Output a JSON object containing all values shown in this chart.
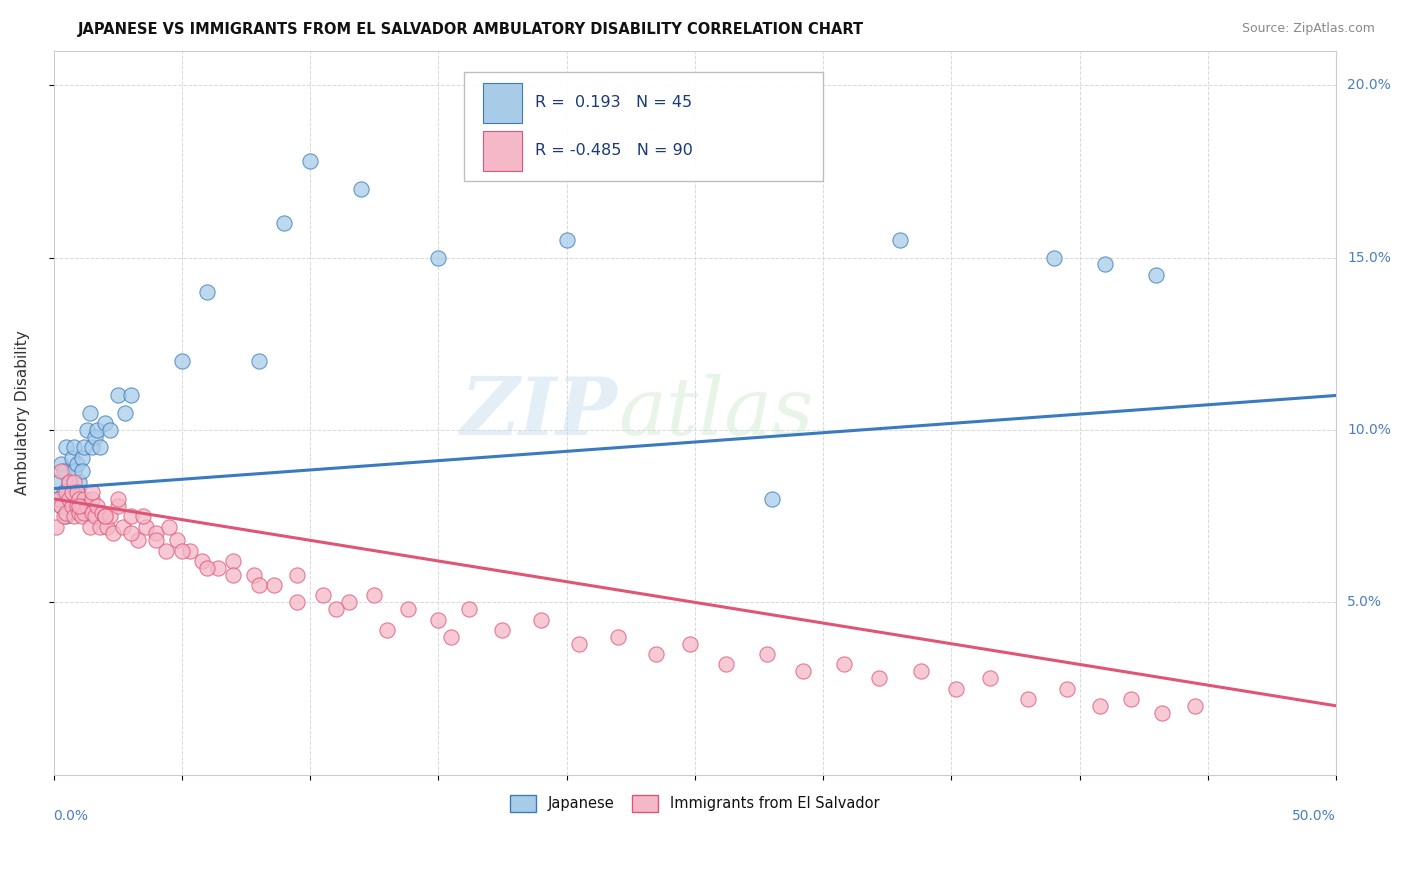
{
  "title": "JAPANESE VS IMMIGRANTS FROM EL SALVADOR AMBULATORY DISABILITY CORRELATION CHART",
  "source": "Source: ZipAtlas.com",
  "ylabel": "Ambulatory Disability",
  "xlim": [
    0.0,
    0.5
  ],
  "ylim": [
    0.0,
    0.21
  ],
  "R_japanese": 0.193,
  "N_japanese": 45,
  "R_elsalvador": -0.485,
  "N_elsalvador": 90,
  "japanese_color": "#a8cce8",
  "elsalvador_color": "#f4b8c8",
  "japanese_line_color": "#3a7bbf",
  "elsalvador_line_color": "#e05575",
  "watermark_zip": "ZIP",
  "watermark_atlas": "atlas",
  "legend_label_japanese": "Japanese",
  "legend_label_elsalvador": "Immigrants from El Salvador",
  "japanese_x": [
    0.001,
    0.002,
    0.003,
    0.003,
    0.004,
    0.004,
    0.005,
    0.005,
    0.006,
    0.006,
    0.007,
    0.007,
    0.008,
    0.008,
    0.009,
    0.009,
    0.01,
    0.01,
    0.011,
    0.011,
    0.012,
    0.013,
    0.014,
    0.015,
    0.016,
    0.017,
    0.018,
    0.02,
    0.022,
    0.025,
    0.028,
    0.03,
    0.05,
    0.06,
    0.08,
    0.09,
    0.1,
    0.12,
    0.15,
    0.2,
    0.28,
    0.33,
    0.39,
    0.41,
    0.43
  ],
  "japanese_y": [
    0.08,
    0.085,
    0.078,
    0.09,
    0.082,
    0.088,
    0.075,
    0.095,
    0.08,
    0.085,
    0.092,
    0.078,
    0.088,
    0.095,
    0.082,
    0.09,
    0.085,
    0.078,
    0.092,
    0.088,
    0.095,
    0.1,
    0.105,
    0.095,
    0.098,
    0.1,
    0.095,
    0.102,
    0.1,
    0.11,
    0.105,
    0.11,
    0.12,
    0.14,
    0.12,
    0.16,
    0.178,
    0.17,
    0.15,
    0.155,
    0.08,
    0.155,
    0.15,
    0.148,
    0.145
  ],
  "elsalvador_x": [
    0.001,
    0.002,
    0.003,
    0.003,
    0.004,
    0.005,
    0.005,
    0.006,
    0.006,
    0.007,
    0.007,
    0.008,
    0.008,
    0.009,
    0.009,
    0.01,
    0.01,
    0.011,
    0.011,
    0.012,
    0.012,
    0.013,
    0.014,
    0.015,
    0.015,
    0.016,
    0.017,
    0.018,
    0.019,
    0.02,
    0.021,
    0.022,
    0.023,
    0.025,
    0.027,
    0.03,
    0.033,
    0.036,
    0.04,
    0.044,
    0.048,
    0.053,
    0.058,
    0.064,
    0.07,
    0.078,
    0.086,
    0.095,
    0.105,
    0.115,
    0.125,
    0.138,
    0.15,
    0.162,
    0.175,
    0.19,
    0.205,
    0.22,
    0.235,
    0.248,
    0.262,
    0.278,
    0.292,
    0.308,
    0.322,
    0.338,
    0.352,
    0.365,
    0.38,
    0.395,
    0.408,
    0.42,
    0.432,
    0.445,
    0.01,
    0.015,
    0.02,
    0.025,
    0.03,
    0.035,
    0.04,
    0.045,
    0.05,
    0.06,
    0.07,
    0.08,
    0.095,
    0.11,
    0.13,
    0.155
  ],
  "elsalvador_y": [
    0.072,
    0.08,
    0.078,
    0.088,
    0.075,
    0.082,
    0.076,
    0.085,
    0.08,
    0.078,
    0.082,
    0.075,
    0.085,
    0.078,
    0.082,
    0.076,
    0.08,
    0.078,
    0.075,
    0.08,
    0.076,
    0.078,
    0.072,
    0.08,
    0.076,
    0.075,
    0.078,
    0.072,
    0.076,
    0.075,
    0.072,
    0.075,
    0.07,
    0.078,
    0.072,
    0.075,
    0.068,
    0.072,
    0.07,
    0.065,
    0.068,
    0.065,
    0.062,
    0.06,
    0.062,
    0.058,
    0.055,
    0.058,
    0.052,
    0.05,
    0.052,
    0.048,
    0.045,
    0.048,
    0.042,
    0.045,
    0.038,
    0.04,
    0.035,
    0.038,
    0.032,
    0.035,
    0.03,
    0.032,
    0.028,
    0.03,
    0.025,
    0.028,
    0.022,
    0.025,
    0.02,
    0.022,
    0.018,
    0.02,
    0.078,
    0.082,
    0.075,
    0.08,
    0.07,
    0.075,
    0.068,
    0.072,
    0.065,
    0.06,
    0.058,
    0.055,
    0.05,
    0.048,
    0.042,
    0.04
  ]
}
